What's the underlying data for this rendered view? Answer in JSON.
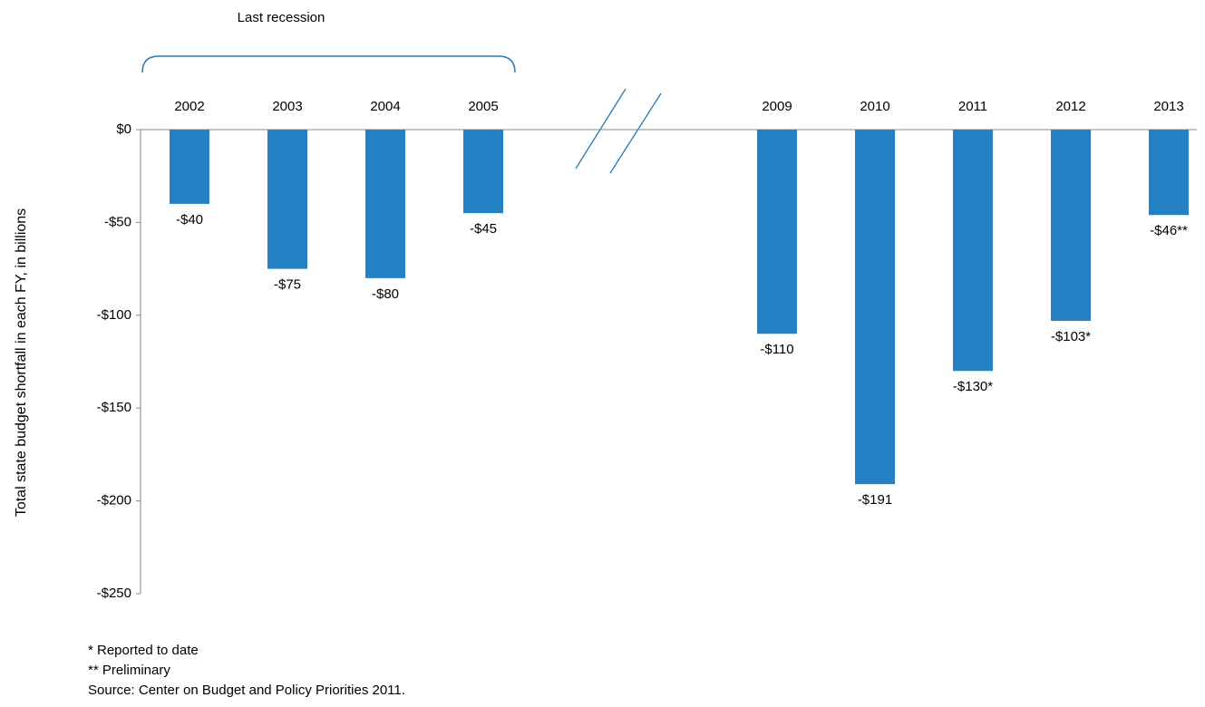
{
  "chart_data": {
    "type": "bar",
    "y_label": "Total state budget shortfall in each FY, in billions",
    "annotation": "Last recession",
    "categories": [
      "2002",
      "2003",
      "2004",
      "2005",
      null,
      null,
      "2009",
      "2010",
      "2011",
      "2012",
      "2013"
    ],
    "values": [
      -40,
      -75,
      -80,
      -45,
      null,
      null,
      -110,
      -191,
      -130,
      -103,
      -46
    ],
    "value_labels": [
      "-$40",
      "-$75",
      "-$80",
      "-$45",
      null,
      null,
      "-$110",
      "-$191",
      "-$130*",
      "-$103*",
      "-$46**"
    ],
    "color": "#2481c4",
    "ylim": [
      -250,
      0
    ],
    "yticks": [
      {
        "value": 0,
        "label": "$0"
      },
      {
        "value": -50,
        "label": "-$50"
      },
      {
        "value": -100,
        "label": "-$100"
      },
      {
        "value": -150,
        "label": "-$150"
      },
      {
        "value": -200,
        "label": "-$200"
      },
      {
        "value": -250,
        "label": "-$250"
      }
    ],
    "notes": [
      "* Reported to date",
      "** Preliminary",
      "Source: Center on Budget and Policy Priorities 2011."
    ]
  }
}
